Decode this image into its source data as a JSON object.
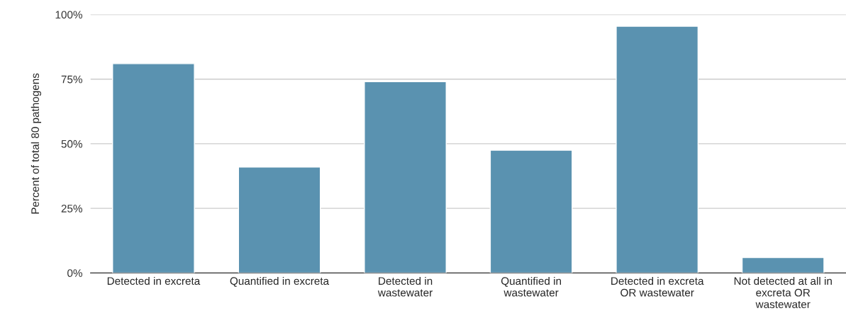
{
  "chart_data": {
    "type": "bar",
    "ylabel": "Percent of total 80 pathogens",
    "categories": [
      "Detected in excreta",
      "Quantified in excreta",
      "Detected in\nwastewater",
      "Quantified in\nwastewater",
      "Detected in excreta\nOR wastewater",
      "Not detected at all in\nexcreta OR\nwastewater"
    ],
    "values": [
      81,
      41,
      74,
      47.5,
      95.5,
      6
    ],
    "color": "#5a92b0",
    "ylim": [
      0,
      100
    ],
    "yticks": [
      {
        "value": 0,
        "label": "0%"
      },
      {
        "value": 25,
        "label": "25%"
      },
      {
        "value": 50,
        "label": "50%"
      },
      {
        "value": 75,
        "label": "75%"
      },
      {
        "value": 100,
        "label": "100%"
      }
    ],
    "grid": "y"
  }
}
